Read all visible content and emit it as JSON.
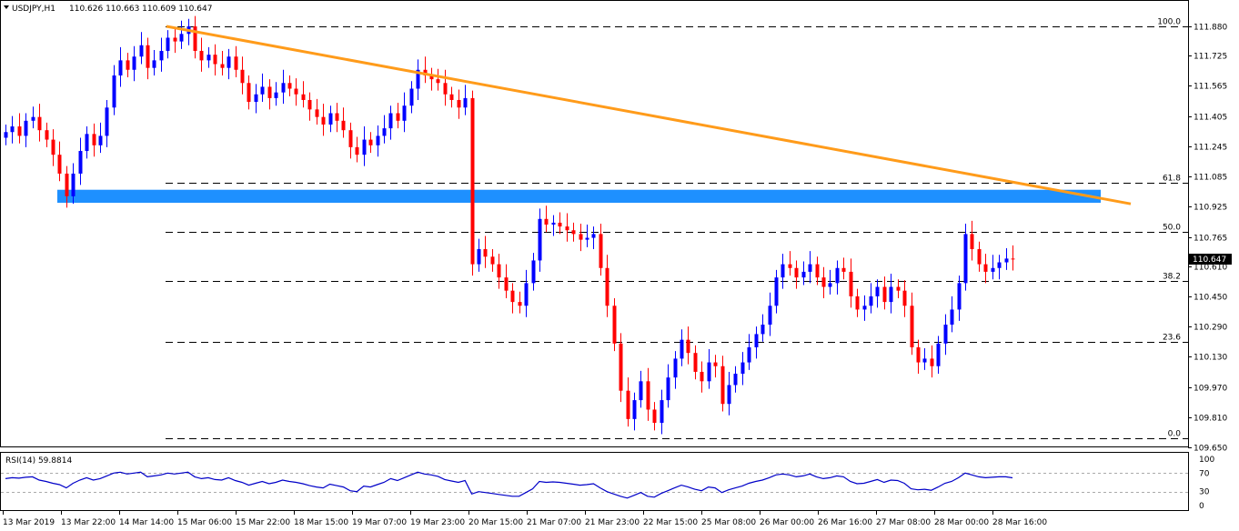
{
  "header": {
    "symbol": "USDJPY,H1",
    "ohlc": "110.626 110.663 110.609 110.647"
  },
  "colors": {
    "bull": "#0000ff",
    "bear": "#ff0000",
    "trendline": "#ff9b1a",
    "zone": "#1e90ff",
    "rsi_line": "#0000c8",
    "price_tag_bg": "#000000"
  },
  "chart_data": [
    {
      "type": "candlestick",
      "symbol": "USDJPY",
      "timeframe": "H1",
      "ylim": [
        109.65,
        111.95
      ],
      "y_ticks": [
        "111.880",
        "111.725",
        "111.565",
        "111.405",
        "111.245",
        "111.085",
        "110.925",
        "110.765",
        "110.610",
        "110.450",
        "110.290",
        "110.130",
        "109.970",
        "109.810",
        "109.650"
      ],
      "current_price": "110.647",
      "x_labels": [
        "13 Mar 2019",
        "13 Mar 22:00",
        "14 Mar 14:00",
        "15 Mar 06:00",
        "15 Mar 22:00",
        "18 Mar 15:00",
        "19 Mar 07:00",
        "19 Mar 23:00",
        "20 Mar 15:00",
        "21 Mar 07:00",
        "21 Mar 23:00",
        "22 Mar 15:00",
        "25 Mar 08:00",
        "26 Mar 00:00",
        "26 Mar 16:00",
        "27 Mar 08:00",
        "28 Mar 00:00",
        "28 Mar 16:00"
      ],
      "fibonacci": {
        "high": 111.88,
        "low": 109.7,
        "levels": [
          {
            "label": "100.0",
            "price": 111.88
          },
          {
            "label": "61.8",
            "price": 111.05
          },
          {
            "label": "50.0",
            "price": 110.79
          },
          {
            "label": "38.2",
            "price": 110.53
          },
          {
            "label": "23.6",
            "price": 110.21
          },
          {
            "label": "0.0",
            "price": 109.7
          }
        ]
      },
      "trendline": {
        "from": [
          "14 Mar 14:00",
          111.88
        ],
        "to": [
          "28 Mar 16:00",
          110.94
        ]
      },
      "support_zone": {
        "price_top": 111.0,
        "price_bottom": 110.96
      },
      "closes": [
        111.32,
        111.35,
        111.3,
        111.38,
        111.4,
        111.33,
        111.28,
        111.2,
        111.1,
        110.98,
        111.1,
        111.22,
        111.31,
        111.25,
        111.3,
        111.45,
        111.62,
        111.7,
        111.65,
        111.72,
        111.78,
        111.66,
        111.7,
        111.75,
        111.82,
        111.8,
        111.84,
        111.88,
        111.75,
        111.7,
        111.73,
        111.68,
        111.66,
        111.72,
        111.65,
        111.58,
        111.48,
        111.52,
        111.56,
        111.5,
        111.53,
        111.58,
        111.55,
        111.52,
        111.49,
        111.44,
        111.4,
        111.36,
        111.42,
        111.38,
        111.33,
        111.24,
        111.2,
        111.28,
        111.25,
        111.3,
        111.34,
        111.42,
        111.38,
        111.46,
        111.55,
        111.65,
        111.62,
        111.6,
        111.58,
        111.52,
        111.49,
        111.45,
        111.5,
        110.62,
        110.7,
        110.66,
        110.62,
        110.55,
        110.48,
        110.42,
        110.4,
        110.52,
        110.64,
        110.86,
        110.83,
        110.84,
        110.82,
        110.8,
        110.78,
        110.75,
        110.76,
        110.78,
        110.6,
        110.4,
        110.2,
        109.95,
        109.8,
        109.9,
        110.0,
        109.85,
        109.78,
        109.9,
        110.02,
        110.12,
        110.22,
        110.15,
        110.05,
        110.0,
        110.1,
        110.08,
        109.88,
        109.98,
        110.04,
        110.1,
        110.18,
        110.25,
        110.3,
        110.4,
        110.55,
        110.62,
        110.6,
        110.55,
        110.58,
        110.62,
        110.55,
        110.5,
        110.52,
        110.6,
        110.58,
        110.45,
        110.38,
        110.4,
        110.45,
        110.5,
        110.42,
        110.5,
        110.48,
        110.4,
        110.18,
        110.1,
        110.12,
        110.08,
        110.2,
        110.3,
        110.38,
        110.52,
        110.78,
        110.7,
        110.62,
        110.58,
        110.6,
        110.63,
        110.65,
        110.647
      ]
    },
    {
      "type": "line",
      "name": "RSI(14)",
      "label": "RSI(14) 59.8814",
      "ylim": [
        0,
        100
      ],
      "levels": [
        "70",
        "30"
      ],
      "y_ticks": [
        "100",
        "70",
        "30",
        "0"
      ],
      "values": [
        58,
        60,
        59,
        61,
        62,
        55,
        52,
        48,
        45,
        38,
        48,
        55,
        60,
        55,
        58,
        64,
        70,
        72,
        68,
        70,
        72,
        62,
        64,
        66,
        70,
        68,
        70,
        72,
        62,
        58,
        60,
        56,
        55,
        60,
        54,
        50,
        44,
        48,
        52,
        47,
        50,
        55,
        52,
        50,
        47,
        43,
        40,
        38,
        46,
        43,
        40,
        32,
        30,
        42,
        40,
        45,
        50,
        58,
        54,
        60,
        66,
        72,
        68,
        66,
        63,
        56,
        53,
        50,
        54,
        25,
        30,
        28,
        26,
        24,
        22,
        20,
        20,
        28,
        36,
        52,
        50,
        51,
        50,
        48,
        46,
        44,
        45,
        47,
        38,
        30,
        25,
        20,
        16,
        22,
        28,
        20,
        18,
        26,
        32,
        38,
        44,
        40,
        35,
        32,
        40,
        38,
        28,
        34,
        38,
        42,
        48,
        52,
        55,
        60,
        66,
        68,
        66,
        62,
        64,
        68,
        62,
        58,
        60,
        64,
        62,
        52,
        47,
        48,
        52,
        56,
        50,
        55,
        54,
        48,
        36,
        34,
        35,
        33,
        40,
        48,
        52,
        60,
        70,
        66,
        62,
        60,
        61,
        62,
        62,
        59.88
      ]
    }
  ]
}
